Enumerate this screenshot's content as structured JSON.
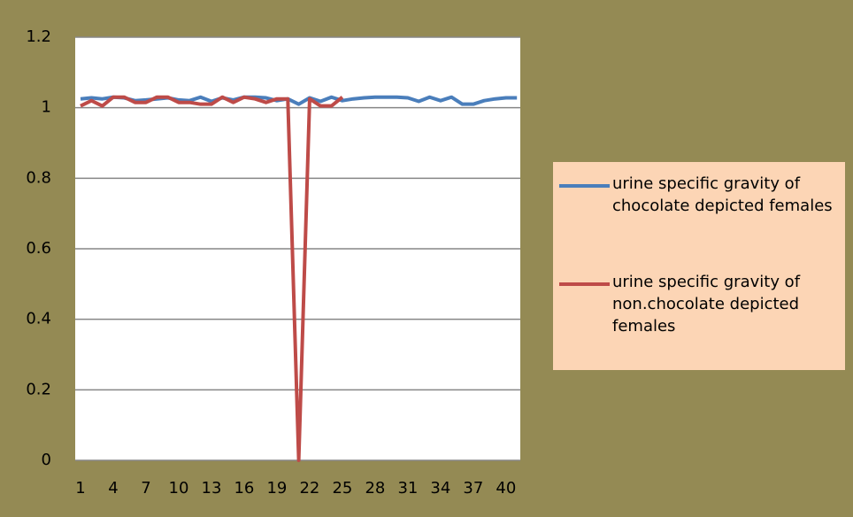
{
  "chart_data": {
    "type": "line",
    "categories": [
      1,
      null,
      null,
      4,
      null,
      null,
      7,
      null,
      null,
      10,
      null,
      null,
      13,
      null,
      null,
      16,
      null,
      null,
      19,
      null,
      null,
      22,
      null,
      null,
      25,
      null,
      null,
      28,
      null,
      null,
      31,
      null,
      null,
      34,
      null,
      null,
      37,
      null,
      null,
      40,
      null
    ],
    "series": [
      {
        "name": "urine specific gravity of chocolate depicted females",
        "color": "#4a7ebb",
        "values": [
          1.025,
          1.028,
          1.025,
          1.03,
          1.028,
          1.02,
          1.022,
          1.025,
          1.028,
          1.022,
          1.02,
          1.03,
          1.018,
          1.028,
          1.022,
          1.03,
          1.03,
          1.028,
          1.02,
          1.025,
          1.01,
          1.028,
          1.018,
          1.03,
          1.02,
          1.025,
          1.028,
          1.03,
          1.03,
          1.03,
          1.028,
          1.018,
          1.03,
          1.02,
          1.03,
          1.01,
          1.01,
          1.02,
          1.025,
          1.028,
          1.028
        ]
      },
      {
        "name": "urine specific gravity of non.chocolate depicted females",
        "color": "#be4b48",
        "values": [
          1.005,
          1.02,
          1.005,
          1.03,
          1.03,
          1.015,
          1.015,
          1.03,
          1.03,
          1.015,
          1.015,
          1.01,
          1.01,
          1.03,
          1.015,
          1.03,
          1.025,
          1.015,
          1.025,
          1.025,
          0,
          1.025,
          1.005,
          1.005,
          1.03,
          null,
          null,
          null,
          null,
          null,
          null,
          null,
          null,
          null,
          null,
          null,
          null,
          null,
          null,
          null,
          null
        ]
      }
    ],
    "ylim": [
      0,
      1.2
    ],
    "yticks": [
      0,
      0.2,
      0.4,
      0.6,
      0.8,
      1,
      1.2
    ],
    "grid": true,
    "legend": "right"
  }
}
